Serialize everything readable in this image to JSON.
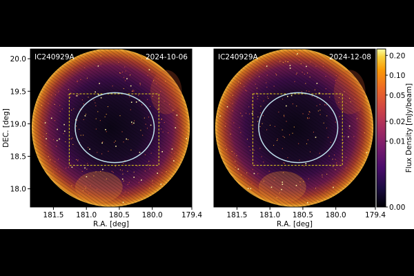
{
  "chart_data": {
    "type": "heatmap",
    "colormap": "inferno",
    "panels": [
      {
        "source": "IC240929A",
        "date": "2024-10-06",
        "xlabel": "R.A. [deg]",
        "ylabel": "DEC. [deg]",
        "xlim": [
          181.85,
          179.4
        ],
        "ylim": [
          17.72,
          20.15
        ],
        "xticks": [
          {
            "value": 181.5,
            "label": "181.5"
          },
          {
            "value": 181.0,
            "label": "181.0"
          },
          {
            "value": 180.5,
            "label": "180.5"
          },
          {
            "value": 180.0,
            "label": "180.0"
          },
          {
            "value": 179.4,
            "label": "179.4"
          }
        ],
        "yticks": [
          {
            "value": 20.0,
            "label": "20.0"
          },
          {
            "value": 19.5,
            "label": "19.5"
          },
          {
            "value": 19.0,
            "label": "19.0"
          },
          {
            "value": 18.5,
            "label": "18.5"
          },
          {
            "value": 18.0,
            "label": "18.0"
          }
        ],
        "field_center": {
          "ra": 180.63,
          "dec": 18.94
        },
        "field_radius_deg": 1.2,
        "error_ellipse": {
          "ra": 180.57,
          "dec": 18.94,
          "semi_axis_ra": 0.6,
          "semi_axis_dec": 0.53,
          "color": "#bfe3ee"
        },
        "dashed_box": {
          "ra_min": 179.9,
          "ra_max": 181.26,
          "dec_min": 18.36,
          "dec_max": 19.46,
          "color": "#e6d21e"
        }
      },
      {
        "source": "IC240929A",
        "date": "2024-12-08",
        "xlabel": "R.A. [deg]",
        "ylabel": "",
        "xlim": [
          181.85,
          179.4
        ],
        "ylim": [
          17.72,
          20.15
        ],
        "xticks": [
          {
            "value": 181.5,
            "label": "181.5"
          },
          {
            "value": 181.0,
            "label": "181.0"
          },
          {
            "value": 180.5,
            "label": "180.5"
          },
          {
            "value": 180.0,
            "label": "180.0"
          },
          {
            "value": 179.4,
            "label": "179.4"
          }
        ],
        "yticks": [],
        "field_center": {
          "ra": 180.63,
          "dec": 18.94
        },
        "field_radius_deg": 1.2,
        "error_ellipse": {
          "ra": 180.57,
          "dec": 18.94,
          "semi_axis_ra": 0.6,
          "semi_axis_dec": 0.53,
          "color": "#bfe3ee"
        },
        "dashed_box": {
          "ra_min": 179.9,
          "ra_max": 181.26,
          "dec_min": 18.36,
          "dec_max": 19.46,
          "color": "#e6d21e"
        }
      }
    ],
    "colorbar": {
      "label": "Flux Density [mJy/beam]",
      "range": [
        0.0,
        0.25
      ],
      "ticks": [
        {
          "value": 0.0,
          "label": "0.00"
        },
        {
          "value": 0.01,
          "label": "0.01"
        },
        {
          "value": 0.02,
          "label": "0.02"
        },
        {
          "value": 0.05,
          "label": "0.05"
        },
        {
          "value": 0.1,
          "label": "0.10"
        },
        {
          "value": 0.2,
          "label": "0.20"
        }
      ]
    }
  }
}
